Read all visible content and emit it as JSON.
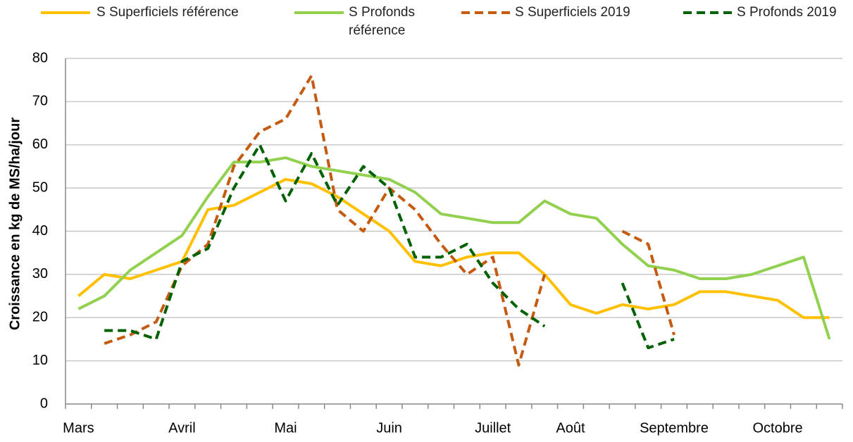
{
  "chart_data": {
    "type": "line",
    "y_label": "Croissance en kg de MS/ha/jour",
    "categories": [
      "Mars",
      null,
      null,
      null,
      "Avril",
      null,
      null,
      null,
      "Mai",
      null,
      null,
      null,
      "Juin",
      null,
      null,
      null,
      "Juillet",
      null,
      null,
      "Août",
      null,
      null,
      null,
      "Septembre",
      null,
      null,
      null,
      "Octobre",
      null,
      null
    ],
    "series": [
      {
        "name": "S Superficiels référence",
        "color": "#ffc000",
        "dashed": false,
        "values": [
          25,
          30,
          29,
          31,
          33,
          45,
          46,
          49,
          52,
          51,
          48,
          44,
          40,
          33,
          32,
          34,
          35,
          35,
          30,
          23,
          21,
          23,
          22,
          23,
          26,
          26,
          25,
          24,
          20,
          20
        ]
      },
      {
        "name": "S Profonds référence",
        "color": "#92d050",
        "dashed": false,
        "values": [
          22,
          25,
          31,
          35,
          39,
          48,
          56,
          56,
          57,
          55,
          54,
          53,
          52,
          49,
          44,
          43,
          42,
          42,
          47,
          44,
          43,
          37,
          32,
          31,
          29,
          29,
          30,
          32,
          34,
          15
        ]
      },
      {
        "name": "S Superficiels 2019",
        "color": "#c55a11",
        "dashed": true,
        "values": [
          null,
          14,
          16,
          19,
          32,
          37,
          55,
          63,
          66,
          76,
          45,
          40,
          50,
          45,
          37,
          30,
          34,
          9,
          30,
          null,
          null,
          40,
          37,
          16,
          null,
          null,
          null,
          null,
          null,
          null
        ]
      },
      {
        "name": "S Profonds 2019",
        "color": "#006100",
        "dashed": true,
        "values": [
          null,
          17,
          17,
          15,
          33,
          36,
          50,
          60,
          47,
          58,
          46,
          55,
          50,
          34,
          34,
          37,
          28,
          22,
          18,
          null,
          null,
          28,
          13,
          15,
          null,
          null,
          null,
          null,
          null,
          null
        ]
      }
    ],
    "ylim": [
      0,
      80
    ],
    "yticks": [
      0,
      10,
      20,
      30,
      40,
      50,
      60,
      70,
      80
    ],
    "grid": true
  }
}
